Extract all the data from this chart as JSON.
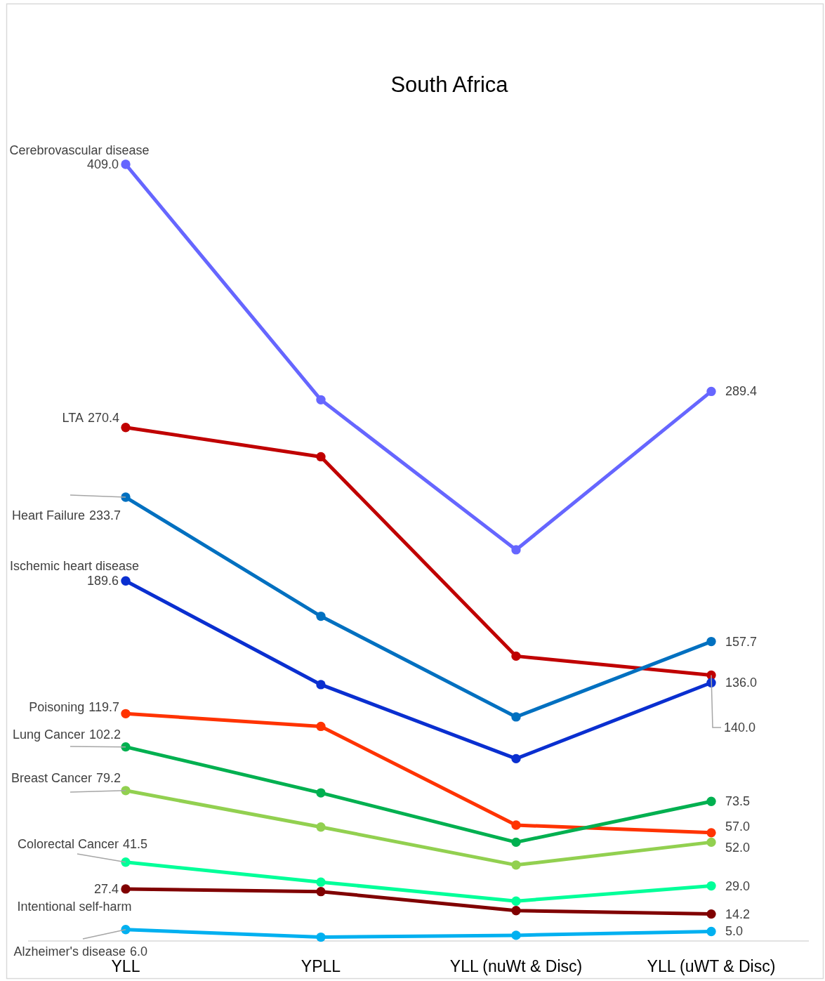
{
  "chart_data": {
    "type": "line",
    "title": "South Africa",
    "categories": [
      "YLL",
      "YPLL",
      "YLL (nuWt & Disc)",
      "YLL (uWT & Disc)"
    ],
    "tick_labels": "x",
    "marker": "circle",
    "series": [
      {
        "name": "Cerebrovascular disease",
        "color": "#6666ff",
        "values": [
          409.0,
          285,
          206,
          289.4
        ],
        "value_labels": [
          "409.0",
          null,
          null,
          "289.4"
        ]
      },
      {
        "name": "LTA",
        "color": "#c00000",
        "values": [
          270.4,
          255,
          150,
          140.0
        ],
        "value_labels": [
          "270.4",
          null,
          null,
          "140.0"
        ]
      },
      {
        "name": "Heart Failure",
        "color": "#0070c0",
        "values": [
          233.7,
          171,
          118,
          157.7
        ],
        "value_labels": [
          "233.7",
          null,
          null,
          "157.7"
        ]
      },
      {
        "name": "Ischemic heart disease",
        "color": "#0a2fd0",
        "values": [
          189.6,
          135,
          96,
          136.0
        ],
        "value_labels": [
          "189.6",
          null,
          null,
          "136.0"
        ]
      },
      {
        "name": "Poisoning",
        "color": "#ff3300",
        "values": [
          119.7,
          113,
          61,
          57.0
        ],
        "value_labels": [
          "119.7",
          null,
          null,
          "57.0"
        ]
      },
      {
        "name": "Lung Cancer",
        "color": "#00b050",
        "values": [
          102.2,
          78,
          52,
          73.5
        ],
        "value_labels": [
          "102.2",
          null,
          null,
          "73.5"
        ]
      },
      {
        "name": "Breast Cancer",
        "color": "#92d050",
        "values": [
          79.2,
          60,
          40,
          52.0
        ],
        "value_labels": [
          "79.2",
          null,
          null,
          "52.0"
        ]
      },
      {
        "name": "Colorectal Cancer",
        "color": "#00ff99",
        "values": [
          41.5,
          31,
          21,
          29.0
        ],
        "value_labels": [
          "41.5",
          null,
          null,
          "29.0"
        ]
      },
      {
        "name": "Intentional self-harm",
        "color": "#800000",
        "values": [
          27.4,
          26,
          16,
          14.2
        ],
        "value_labels": [
          "27.4",
          null,
          null,
          "14.2"
        ]
      },
      {
        "name": "Alzheimer's disease",
        "color": "#00b0f0",
        "values": [
          6.0,
          2,
          3,
          5.0
        ],
        "value_labels": [
          "6.0",
          null,
          null,
          "5.0"
        ]
      }
    ]
  }
}
